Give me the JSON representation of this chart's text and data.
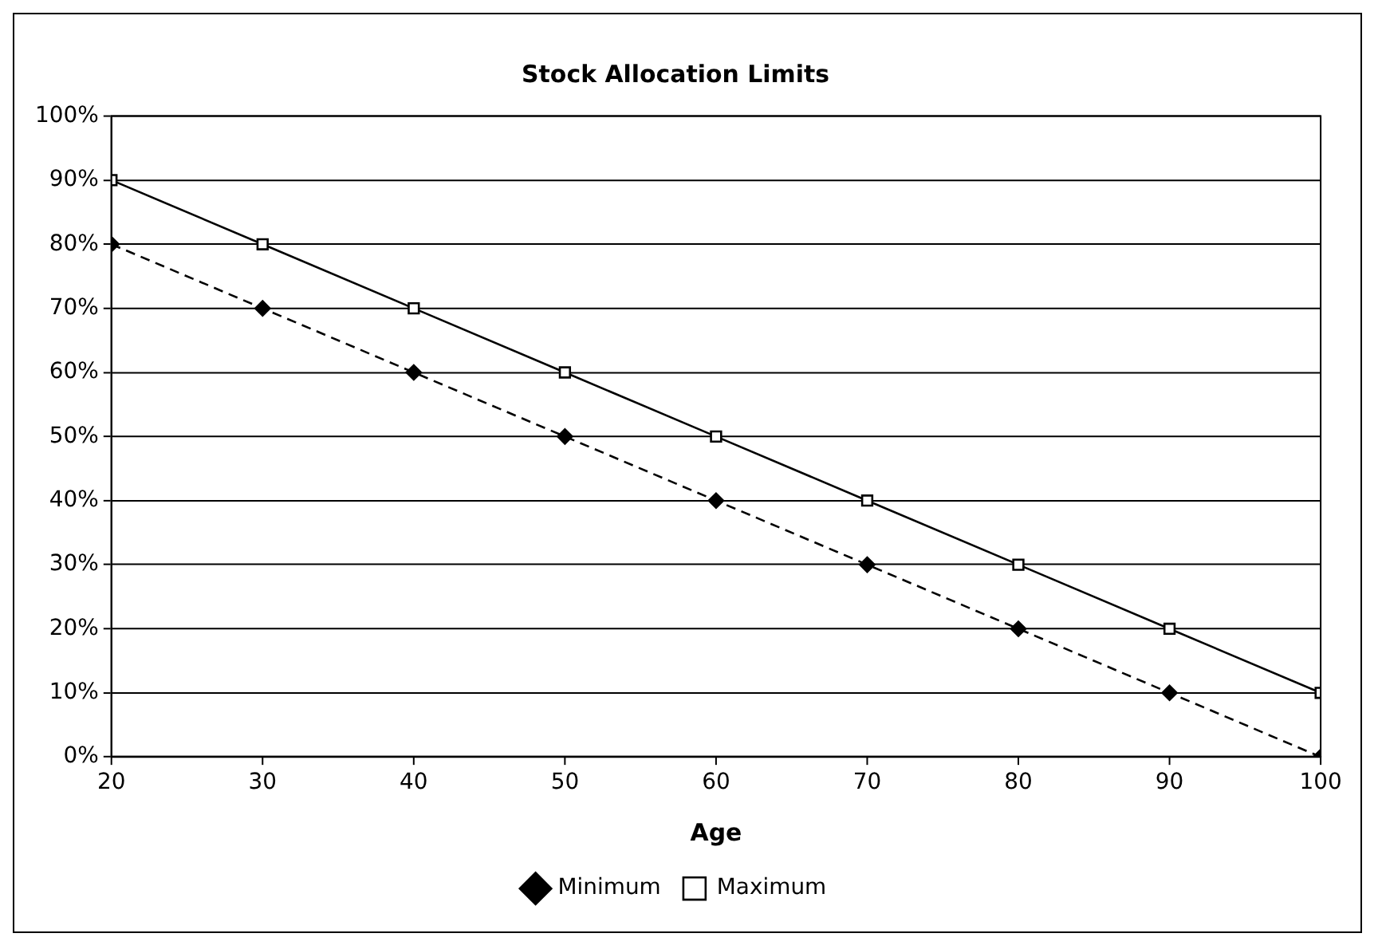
{
  "chart_data": {
    "type": "line",
    "title": "Stock Allocation Limits",
    "xlabel": "Age",
    "x": [
      20,
      30,
      40,
      50,
      60,
      70,
      80,
      90,
      100
    ],
    "series": [
      {
        "name": "Minimum",
        "color": "#000000",
        "marker": "diamond",
        "line_style": "dashed",
        "values": [
          80,
          70,
          60,
          50,
          40,
          30,
          20,
          10,
          0
        ]
      },
      {
        "name": "Maximum",
        "color": "#000000",
        "marker": "square",
        "line_style": "solid",
        "values": [
          90,
          80,
          70,
          60,
          50,
          40,
          30,
          20,
          10
        ]
      }
    ],
    "xlim": [
      20,
      100
    ],
    "xticks": [
      20,
      30,
      40,
      50,
      60,
      70,
      80,
      90,
      100
    ],
    "ylim": [
      0,
      100
    ],
    "yticks": [
      {
        "value": 0,
        "label": "0%"
      },
      {
        "value": 10,
        "label": "10%"
      },
      {
        "value": 20,
        "label": "20%"
      },
      {
        "value": 30,
        "label": "30%"
      },
      {
        "value": 40,
        "label": "40%"
      },
      {
        "value": 50,
        "label": "50%"
      },
      {
        "value": 60,
        "label": "60%"
      },
      {
        "value": 70,
        "label": "70%"
      },
      {
        "value": 80,
        "label": "80%"
      },
      {
        "value": 90,
        "label": "90%"
      },
      {
        "value": 100,
        "label": "100%"
      }
    ],
    "grid": "y",
    "legend": "bottom"
  }
}
